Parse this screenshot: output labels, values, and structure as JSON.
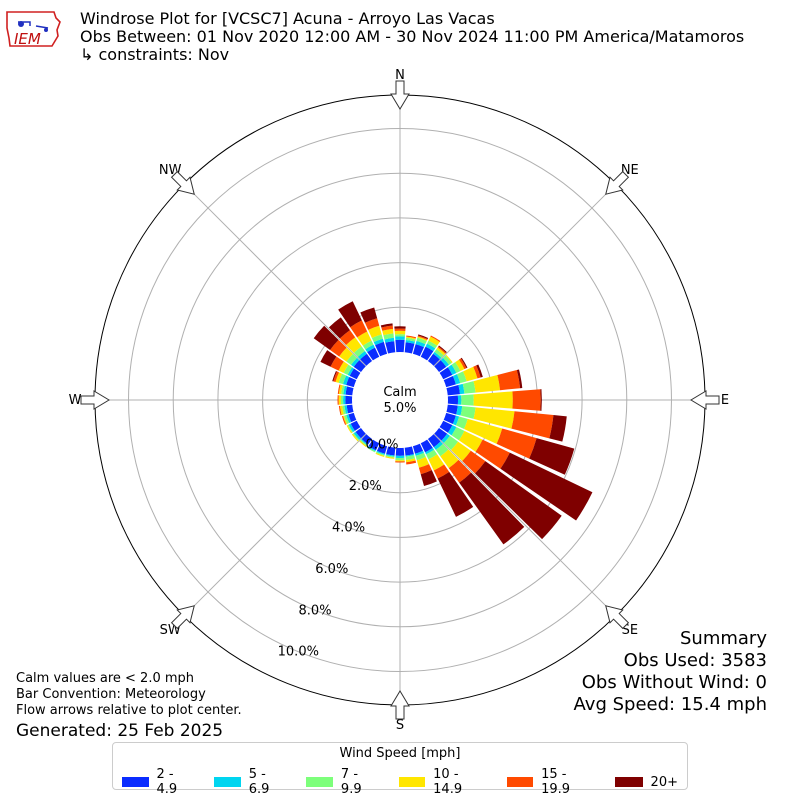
{
  "title": {
    "line1": "Windrose Plot for [VCSC7] Acuna - Arroyo Las Vacas",
    "line2": "Obs Between: 01 Nov 2020 12:00 AM - 30 Nov 2024 11:00 PM America/Matamoros",
    "line3": "↳ constraints: Nov"
  },
  "logo": {
    "text": "IEM"
  },
  "notes": {
    "line1": "Calm values are < 2.0 mph",
    "line2": "Bar Convention: Meteorology",
    "line3": "Flow arrows relative to plot center.",
    "generated": "Generated: 25 Feb 2025"
  },
  "summary": {
    "heading": "Summary",
    "obs_used": "Obs Used: 3583",
    "obs_without_wind": "Obs Without Wind: 0",
    "avg_speed": "Avg Speed: 15.4 mph"
  },
  "legend": {
    "title": "Wind Speed [mph]",
    "items": [
      {
        "label": "2 - 4.9",
        "color": "#0a2cff"
      },
      {
        "label": "5 - 6.9",
        "color": "#00d5f0"
      },
      {
        "label": "7 - 9.9",
        "color": "#7dff7b"
      },
      {
        "label": "10 - 14.9",
        "color": "#ffe600"
      },
      {
        "label": "15 - 19.9",
        "color": "#ff4a00"
      },
      {
        "label": "20+",
        "color": "#7f0000"
      }
    ]
  },
  "chart_data": {
    "type": "windrose",
    "calm": {
      "label": "Calm",
      "value": "5.0%"
    },
    "compass": [
      "N",
      "NE",
      "E",
      "SE",
      "S",
      "SW",
      "W",
      "NW"
    ],
    "radial_ticks": [
      "0.0%",
      "2.0%",
      "4.0%",
      "6.0%",
      "8.0%",
      "10.0%"
    ],
    "rlim": [
      0,
      11.5
    ],
    "bins": [
      "2 - 4.9",
      "5 - 6.9",
      "7 - 9.9",
      "10 - 14.9",
      "15 - 19.9",
      "20+"
    ],
    "sectors": [
      {
        "dir": 0,
        "values": [
          0.55,
          0.15,
          0.1,
          0.15,
          0.1,
          0.1
        ]
      },
      {
        "dir": 10,
        "values": [
          0.45,
          0.1,
          0.1,
          0.05,
          0.05,
          0.0
        ]
      },
      {
        "dir": 20,
        "values": [
          0.45,
          0.15,
          0.15,
          0.05,
          0.05,
          0.05
        ]
      },
      {
        "dir": 30,
        "values": [
          0.5,
          0.15,
          0.15,
          0.2,
          0.05,
          0.0
        ]
      },
      {
        "dir": 40,
        "values": [
          0.4,
          0.1,
          0.15,
          0.1,
          0.05,
          0.05
        ]
      },
      {
        "dir": 50,
        "values": [
          0.4,
          0.15,
          0.15,
          0.05,
          0.0,
          0.0
        ]
      },
      {
        "dir": 60,
        "values": [
          0.45,
          0.2,
          0.2,
          0.2,
          0.1,
          0.05
        ]
      },
      {
        "dir": 70,
        "values": [
          0.45,
          0.2,
          0.3,
          0.5,
          0.15,
          0.1
        ]
      },
      {
        "dir": 80,
        "values": [
          0.55,
          0.2,
          0.5,
          1.1,
          0.9,
          0.1
        ]
      },
      {
        "dir": 90,
        "values": [
          0.45,
          0.15,
          0.55,
          1.75,
          1.25,
          0.05
        ]
      },
      {
        "dir": 100,
        "values": [
          0.45,
          0.2,
          0.6,
          1.75,
          1.75,
          0.6
        ]
      },
      {
        "dir": 110,
        "values": [
          0.45,
          0.15,
          0.4,
          1.6,
          1.6,
          1.75
        ]
      },
      {
        "dir": 120,
        "values": [
          0.45,
          0.2,
          0.4,
          0.9,
          1.35,
          4.1
        ]
      },
      {
        "dir": 130,
        "values": [
          0.45,
          0.15,
          0.45,
          0.7,
          0.8,
          4.2
        ]
      },
      {
        "dir": 140,
        "values": [
          0.45,
          0.15,
          0.35,
          0.65,
          0.8,
          3.4
        ]
      },
      {
        "dir": 150,
        "values": [
          0.45,
          0.1,
          0.25,
          0.55,
          0.4,
          1.9
        ]
      },
      {
        "dir": 160,
        "values": [
          0.35,
          0.1,
          0.2,
          0.35,
          0.3,
          0.55
        ]
      },
      {
        "dir": 170,
        "values": [
          0.35,
          0.05,
          0.15,
          0.1,
          0.1,
          0.0
        ]
      },
      {
        "dir": 180,
        "values": [
          0.35,
          0.1,
          0.1,
          0.05,
          0.05,
          0.0
        ]
      },
      {
        "dir": 190,
        "values": [
          0.35,
          0.05,
          0.05,
          0.05,
          0.0,
          0.0
        ]
      },
      {
        "dir": 200,
        "values": [
          0.35,
          0.05,
          0.05,
          0.05,
          0.0,
          0.0
        ]
      },
      {
        "dir": 210,
        "values": [
          0.35,
          0.05,
          0.05,
          0.0,
          0.0,
          0.0
        ]
      },
      {
        "dir": 220,
        "values": [
          0.3,
          0.05,
          0.05,
          0.05,
          0.0,
          0.0
        ]
      },
      {
        "dir": 230,
        "values": [
          0.3,
          0.1,
          0.05,
          0.05,
          0.0,
          0.0
        ]
      },
      {
        "dir": 240,
        "values": [
          0.3,
          0.1,
          0.05,
          0.05,
          0.0,
          0.0
        ]
      },
      {
        "dir": 250,
        "values": [
          0.25,
          0.1,
          0.1,
          0.05,
          0.05,
          0.0
        ]
      },
      {
        "dir": 260,
        "values": [
          0.25,
          0.1,
          0.1,
          0.1,
          0.05,
          0.0
        ]
      },
      {
        "dir": 270,
        "values": [
          0.3,
          0.1,
          0.1,
          0.1,
          0.05,
          0.0
        ]
      },
      {
        "dir": 280,
        "values": [
          0.3,
          0.1,
          0.1,
          0.1,
          0.05,
          0.0
        ]
      },
      {
        "dir": 290,
        "values": [
          0.35,
          0.15,
          0.2,
          0.15,
          0.1,
          0.05
        ]
      },
      {
        "dir": 300,
        "values": [
          0.35,
          0.1,
          0.2,
          0.25,
          0.4,
          0.5
        ]
      },
      {
        "dir": 310,
        "values": [
          0.4,
          0.15,
          0.25,
          0.4,
          0.5,
          0.9
        ]
      },
      {
        "dir": 320,
        "values": [
          0.4,
          0.15,
          0.25,
          0.5,
          0.4,
          0.7
        ]
      },
      {
        "dir": 330,
        "values": [
          0.45,
          0.15,
          0.2,
          0.45,
          0.55,
          0.95
        ]
      },
      {
        "dir": 340,
        "values": [
          0.55,
          0.15,
          0.2,
          0.4,
          0.35,
          0.5
        ]
      },
      {
        "dir": 350,
        "values": [
          0.5,
          0.15,
          0.2,
          0.2,
          0.15,
          0.1
        ]
      }
    ]
  }
}
